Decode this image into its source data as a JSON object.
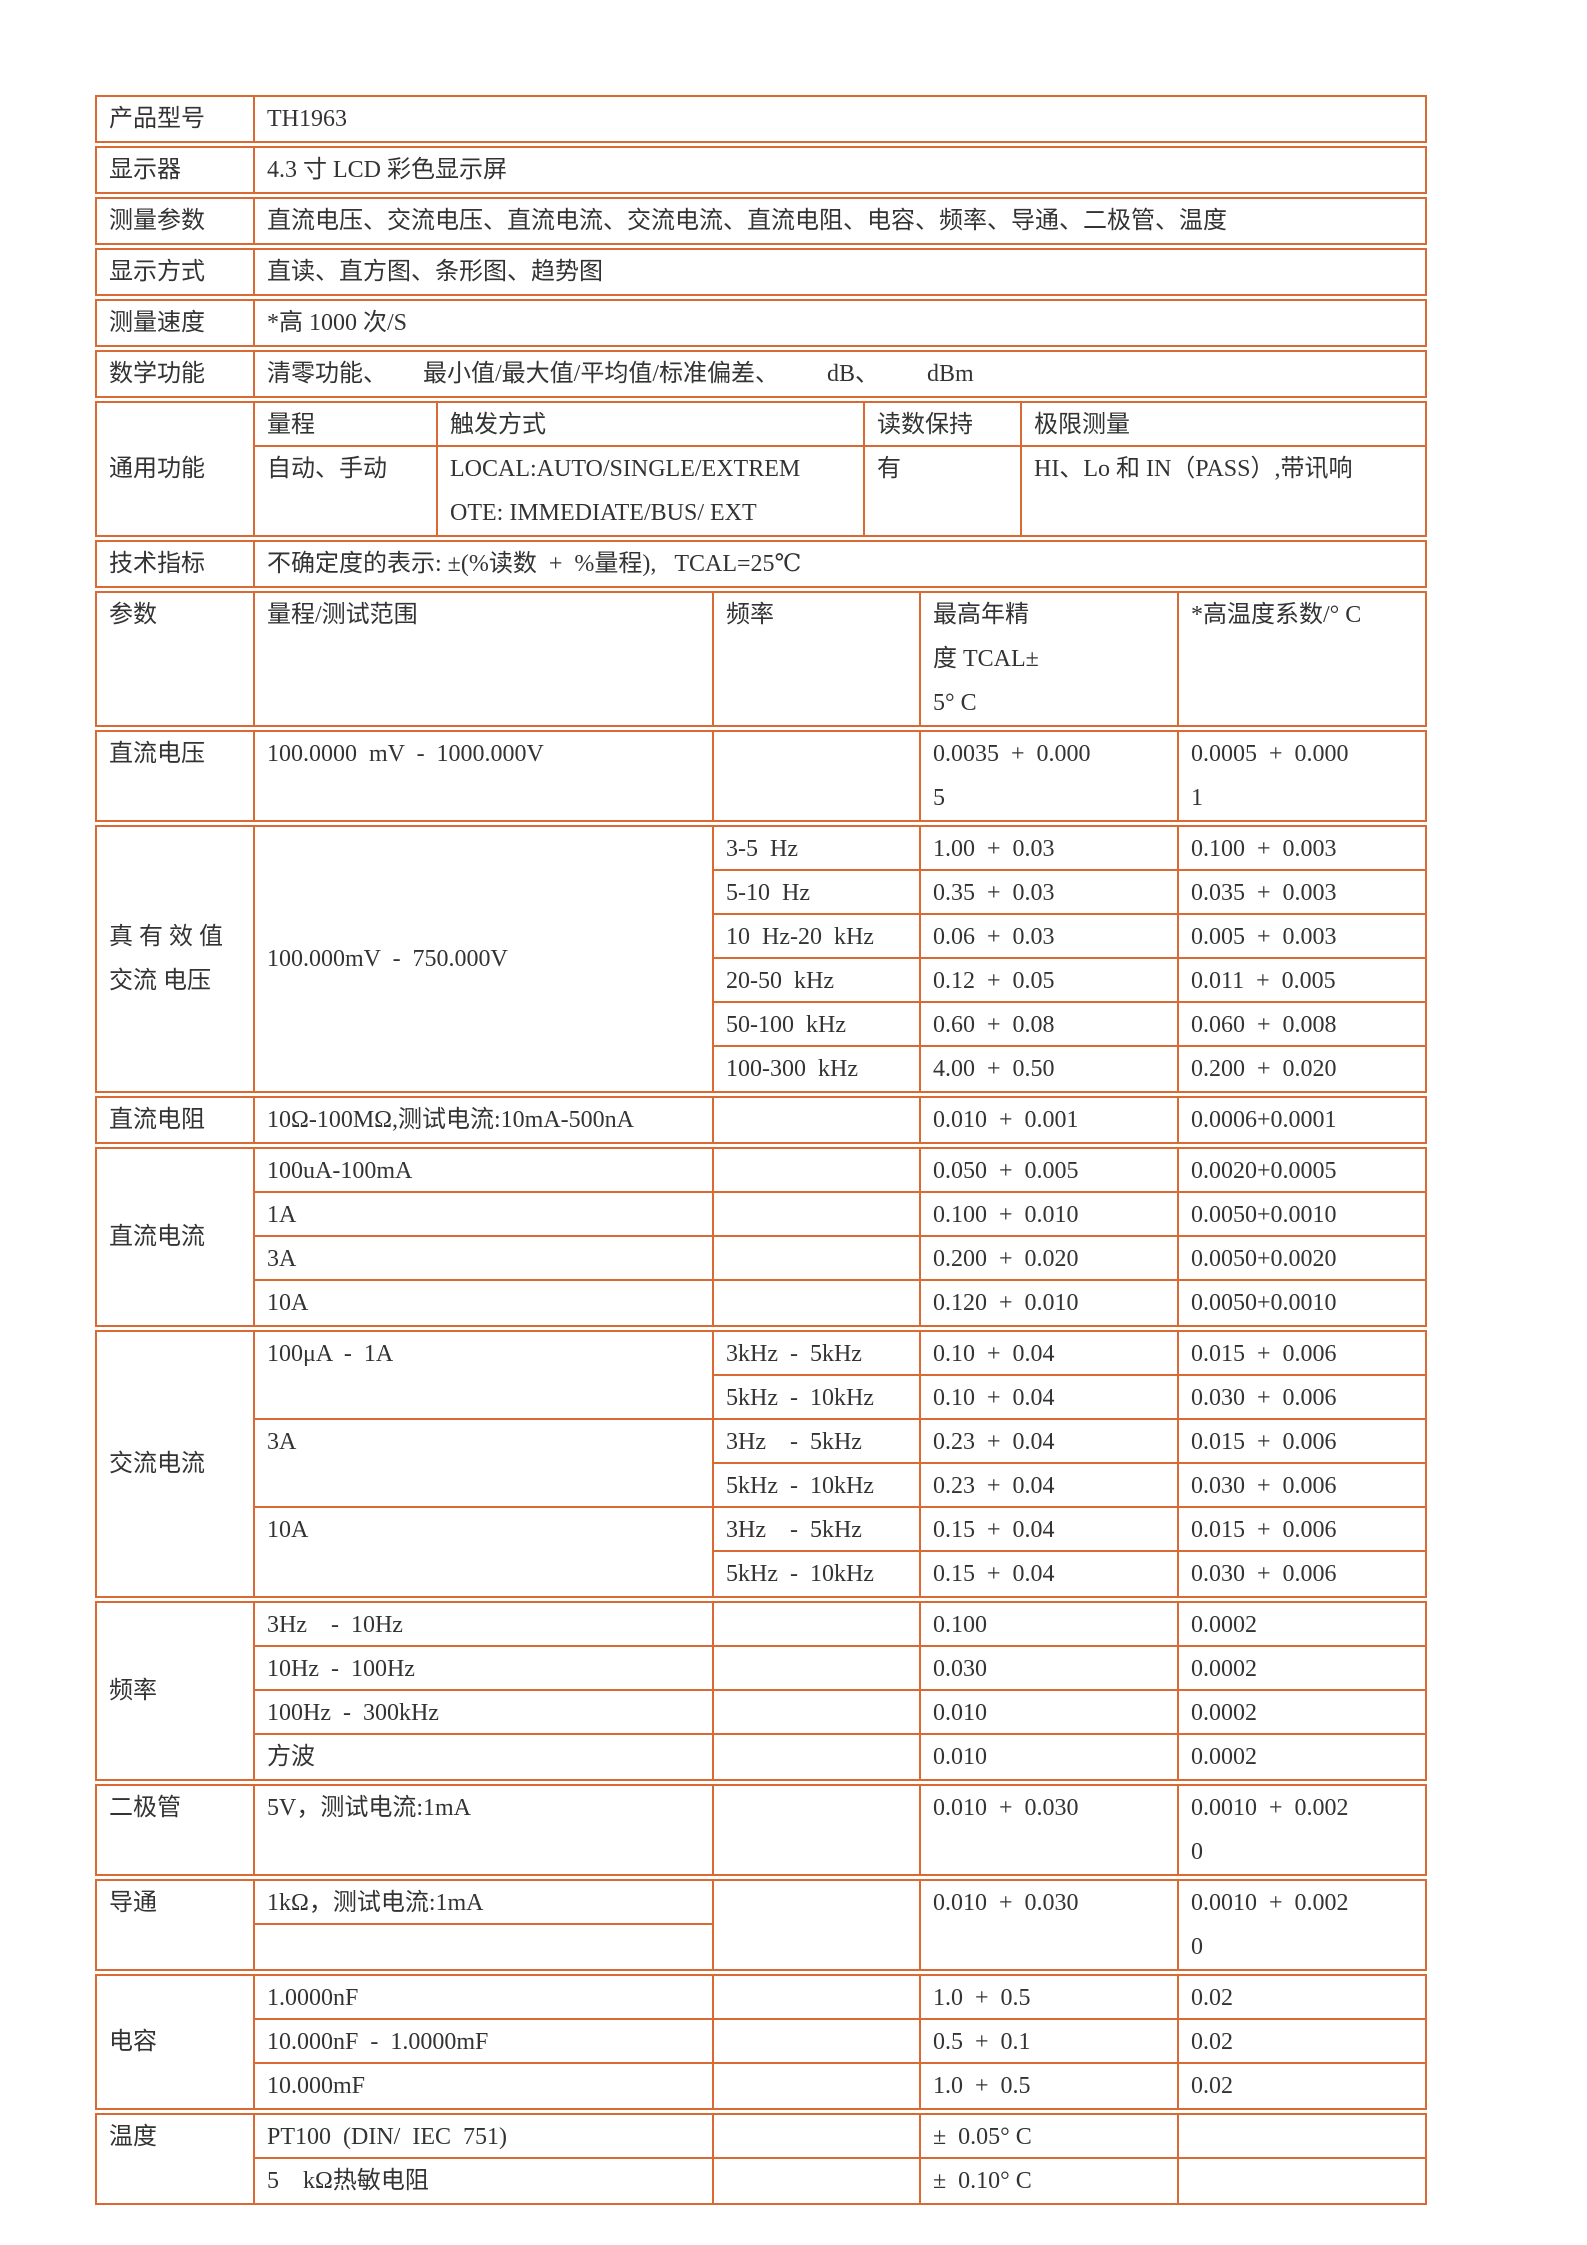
{
  "colors": {
    "border": "#d96a33",
    "text": "#333333",
    "background": "#ffffff"
  },
  "info_rows": [
    {
      "label": "产品型号",
      "value": "TH1963"
    },
    {
      "label": "显示器",
      "value": "4.3 寸 LCD 彩色显示屏"
    },
    {
      "label": "测量参数",
      "value": "直流电压、交流电压、直流电流、交流电流、直流电阻、电容、频率、导通、二极管、温度"
    },
    {
      "label": "显示方式",
      "value": "直读、直方图、条形图、趋势图"
    },
    {
      "label": "测量速度",
      "value": "*高 1000 次/S"
    },
    {
      "label": "数学功能",
      "value": "清零功能、      最小值/最大值/平均值/标准偏差、        dB、        dBm"
    }
  ],
  "general": {
    "label": "通用功能",
    "headers": [
      "量程",
      "触发方式",
      "读数保持",
      "极限测量"
    ],
    "values": [
      "自动、手动",
      "LOCAL:AUTO/SINGLE/EXTREM\nOTE: IMMEDIATE/BUS/ EXT",
      "有",
      "HI、Lo 和 IN（PASS）,带讯响"
    ]
  },
  "tech": {
    "label": "技术指标",
    "value": "不确定度的表示: ±(%读数  +  %量程),   TCAL=25℃"
  },
  "header": {
    "param": "参数",
    "range": "量程/测试范围",
    "freq": "频率",
    "acc": "最高年精\n度 TCAL±\n5° C",
    "tc": "*高温度系数/° C"
  },
  "dcv": {
    "label": "直流电压",
    "range": "100.0000  mV  -  1000.000V",
    "acc": "0.0035  +  0.000\n5",
    "tc": "0.0005  +  0.000\n1"
  },
  "acv": {
    "label": "真 有 效 值\n交流 电压",
    "range": "100.000mV  -  750.000V",
    "rows": [
      {
        "freq": "3-5  Hz",
        "acc": "1.00  +  0.03",
        "tc": "0.100  +  0.003"
      },
      {
        "freq": "5-10  Hz",
        "acc": "0.35  +  0.03",
        "tc": "0.035  +  0.003"
      },
      {
        "freq": "10  Hz-20  kHz",
        "acc": "0.06  +  0.03",
        "tc": "0.005  +  0.003"
      },
      {
        "freq": "20-50  kHz",
        "acc": "0.12  +  0.05",
        "tc": "0.011  +  0.005"
      },
      {
        "freq": "50-100  kHz",
        "acc": "0.60  +  0.08",
        "tc": "0.060  +  0.008"
      },
      {
        "freq": "100-300  kHz",
        "acc": "4.00  +  0.50",
        "tc": "0.200  +  0.020"
      }
    ]
  },
  "res": {
    "label": "直流电阻",
    "range": "10Ω-100MΩ,测试电流:10mA-500nA",
    "acc": "0.010  +  0.001",
    "tc": "0.0006+0.0001"
  },
  "dci": {
    "label": "直流电流",
    "rows": [
      {
        "range": "100uA-100mA",
        "acc": "0.050  +  0.005",
        "tc": "0.0020+0.0005"
      },
      {
        "range": "1A",
        "acc": "0.100  +  0.010",
        "tc": "0.0050+0.0010"
      },
      {
        "range": "3A",
        "acc": "0.200  +  0.020",
        "tc": "0.0050+0.0020"
      },
      {
        "range": "10A",
        "acc": "0.120  +  0.010",
        "tc": "0.0050+0.0010"
      }
    ]
  },
  "aci": {
    "label": "交流电流",
    "ranges": [
      "100μA  -  1A",
      "3A",
      "10A"
    ],
    "rows": [
      {
        "freq": "3kHz  -  5kHz",
        "acc": "0.10  +  0.04",
        "tc": "0.015  +  0.006"
      },
      {
        "freq": "5kHz  -  10kHz",
        "acc": "0.10  +  0.04",
        "tc": "0.030  +  0.006"
      },
      {
        "freq": "3Hz    -  5kHz",
        "acc": "0.23  +  0.04",
        "tc": "0.015  +  0.006"
      },
      {
        "freq": "5kHz  -  10kHz",
        "acc": "0.23  +  0.04",
        "tc": "0.030  +  0.006"
      },
      {
        "freq": "3Hz    -  5kHz",
        "acc": "0.15  +  0.04",
        "tc": "0.015  +  0.006"
      },
      {
        "freq": "5kHz  -  10kHz",
        "acc": "0.15  +  0.04",
        "tc": "0.030  +  0.006"
      }
    ]
  },
  "freq": {
    "label": "频率",
    "rows": [
      {
        "range": "3Hz    -  10Hz",
        "acc": "0.100",
        "tc": "0.0002"
      },
      {
        "range": "10Hz  -  100Hz",
        "acc": "0.030",
        "tc": "0.0002"
      },
      {
        "range": "100Hz  -  300kHz",
        "acc": "0.010",
        "tc": "0.0002"
      },
      {
        "range": "方波",
        "acc": "0.010",
        "tc": "0.0002"
      }
    ]
  },
  "diode": {
    "label": "二极管",
    "range": "5V，测试电流:1mA",
    "acc": "0.010  +  0.030",
    "tc": "0.0010  +  0.002\n0"
  },
  "cont": {
    "label": "导通",
    "range": "1kΩ，测试电流:1mA",
    "acc": "0.010  +  0.030",
    "tc": "0.0010  +  0.002\n0"
  },
  "cap": {
    "label": "电容",
    "rows": [
      {
        "range": "1.0000nF",
        "acc": "1.0  +  0.5",
        "tc": "0.02"
      },
      {
        "range": "10.000nF  -  1.0000mF",
        "acc": "0.5  +  0.1",
        "tc": "0.02"
      },
      {
        "range": "10.000mF",
        "acc": "1.0  +  0.5",
        "tc": "0.02"
      }
    ]
  },
  "temp": {
    "label": "温度",
    "rows": [
      {
        "range": "PT100  (DIN/  IEC  751)",
        "acc": "±  0.05° C"
      },
      {
        "range": "5    kΩ热敏电阻",
        "acc": "±  0.10° C"
      }
    ]
  }
}
